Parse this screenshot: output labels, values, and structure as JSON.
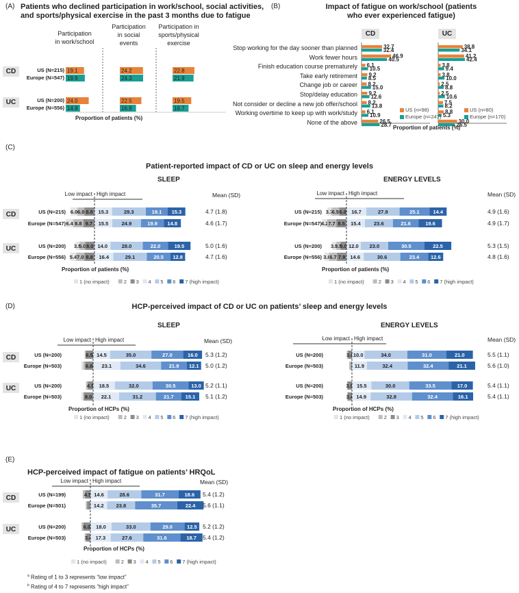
{
  "panelA": {
    "label": "(A)",
    "title_l1": "Patients who declined participation in work/school, social activities,",
    "title_l2": "and sports/physical exercise in the past 3 months due to fatigue",
    "col1_l1": "Participation",
    "col1_l2": "in work/school",
    "col2_l1": "Participation",
    "col2_l2": "in social",
    "col2_l3": "events",
    "col3_l1": "Participation in",
    "col3_l2": "sports/physical",
    "col3_l3": "exercise",
    "cd_badge": "CD",
    "uc_badge": "UC",
    "cd_us": "US (N=215)",
    "cd_eu": "Europe (N=547)",
    "uc_us": "US (N=200)",
    "uc_eu": "Europe (N=556)",
    "xlabel": "Proportion of patients (%)"
  },
  "panelB": {
    "label": "(B)",
    "title_l1": "Impact of fatigue on work/school (patients",
    "title_l2": "who ever experienced fatigue)",
    "cd_badge": "CD",
    "uc_badge": "UC",
    "legend_cd_us": "US (n=98)",
    "legend_cd_eu": "Europe (n=247)",
    "legend_uc_us": "US (n=80)",
    "legend_uc_eu": "Europe (n=170)",
    "xlabel": "Proportion of patients (%)"
  },
  "panelC": {
    "label": "(C)",
    "title": "Patient-reported impact of CD or UC on sleep and energy levels",
    "sleep": "SLEEP",
    "energy": "ENERGY LEVELS",
    "low": "Low impact",
    "high": "High impact",
    "mean_sd": "Mean (SD)",
    "xlabel": "Proportion of patients (%)"
  },
  "panelD": {
    "label": "(D)",
    "title": "HCP-perceived impact of CD or UC on patients’ sleep and energy levels",
    "sleep": "SLEEP",
    "energy": "ENERGY LEVELS",
    "low": "Low impact",
    "high": "High impact",
    "mean_sd": "Mean (SD)",
    "xlabel": "Proportion of HCPs (%)"
  },
  "panelE": {
    "label": "(E)",
    "title": "HCP-perceived impact of fatigue on patients’ HRQoL",
    "low": "Low impact",
    "high": "High impact",
    "mean_sd": "Mean (SD)",
    "xlabel": "Proportion of HCPs (%)"
  },
  "legend7": [
    "1 (no impact)",
    "2",
    "3",
    "4",
    "5",
    "6",
    "7 (high impact)"
  ],
  "footnotes": {
    "a": "Rating of 1 to 3 represents “low impact”",
    "b": "Rating of 4 to 7 represents “high impact”"
  },
  "colors": {
    "us": "#e8823a",
    "europe": "#1a9e94",
    "likert": [
      "#e4e4e4",
      "#bdbdbd",
      "#8c8c8c",
      "#e0e9f5",
      "#b4cbe8",
      "#5f8fcc",
      "#2b63a8"
    ]
  },
  "chart_data": [
    {
      "type": "bar",
      "title": "Patients who declined participation in work/school, social activities, and sports/physical exercise in the past 3 months due to fatigue",
      "categories": [
        "Participation in work/school",
        "Participation in social events",
        "Participation in sports/physical exercise"
      ],
      "groups": [
        {
          "name": "CD",
          "series": [
            {
              "name": "US (N=215)",
              "values": [
                19.1,
                24.2,
                22.8
              ]
            },
            {
              "name": "Europe (N=547)",
              "values": [
                19.9,
                24.3,
                21.9
              ]
            }
          ]
        },
        {
          "name": "UC",
          "series": [
            {
              "name": "US (N=200)",
              "values": [
                24.0,
                22.5,
                19.5
              ]
            },
            {
              "name": "Europe (N=556)",
              "values": [
                14.9,
                16.9,
                16.7
              ]
            }
          ]
        }
      ],
      "xlabel": "Proportion of patients (%)"
    },
    {
      "type": "bar",
      "title": "Impact of fatigue on work/school (patients who ever experienced fatigue)",
      "categories": [
        "Stop working for the day sooner than planned",
        "Work fewer hours",
        "Finish education course prematurely",
        "Take early retirement",
        "Change job or career",
        "Stop/delay education",
        "Not consider or decline a new job offer/school",
        "Working overtime to keep up with work/study",
        "None of the above"
      ],
      "groups": [
        {
          "name": "CD",
          "series": [
            {
              "name": "US (n=98)",
              "values": [
                32.7,
                46.9,
                6.1,
                9.2,
                8.2,
                9.2,
                8.2,
                6.1,
                26.5
              ]
            },
            {
              "name": "Europe (n=247)",
              "values": [
                32.4,
                40.5,
                10.5,
                8.5,
                15.0,
                12.6,
                13.8,
                10.9,
                28.7
              ]
            }
          ]
        },
        {
          "name": "UC",
          "series": [
            {
              "name": "US (n=80)",
              "values": [
                38.8,
                41.2,
                3.8,
                3.8,
                2.5,
                2.5,
                7.5,
                8.8,
                30.0
              ]
            },
            {
              "name": "Europe (n=170)",
              "values": [
                34.1,
                42.4,
                9.4,
                10.0,
                8.8,
                10.6,
                8.2,
                5.3,
                26.5
              ]
            }
          ]
        }
      ],
      "xlabel": "Proportion of patients (%)"
    },
    {
      "type": "bar",
      "stacked": true,
      "title": "Patient-reported impact of CD or UC on sleep and energy levels",
      "legend": [
        "1 (no impact)",
        "2",
        "3",
        "4",
        "5",
        "6",
        "7 (high impact)"
      ],
      "panels": [
        {
          "name": "SLEEP",
          "rows": [
            {
              "group": "CD",
              "label": "US (N=215)",
              "values": [
                6.0,
                6.0,
                8.8,
                15.3,
                29.3,
                19.1,
                15.3
              ],
              "mean_sd": "4.7 (1.8)"
            },
            {
              "group": "CD",
              "label": "Europe (N=547)",
              "values": [
                6.4,
                8.8,
                9.7,
                15.5,
                24.9,
                19.9,
                14.8
              ],
              "mean_sd": "4.6 (1.7)"
            },
            {
              "group": "UC",
              "label": "US (N=200)",
              "values": [
                3.5,
                5.0,
                8.0,
                14.0,
                28.0,
                22.0,
                19.5
              ],
              "mean_sd": "5.0 (1.6)"
            },
            {
              "group": "UC",
              "label": "Europe (N=556)",
              "values": [
                5.4,
                7.0,
                8.8,
                16.4,
                29.1,
                20.5,
                12.8
              ],
              "mean_sd": "4.7 (1.6)"
            }
          ]
        },
        {
          "name": "ENERGY LEVELS",
          "rows": [
            {
              "group": "CD",
              "label": "US (N=215)",
              "values": [
                3.7,
                6.5,
                6.0,
                16.7,
                27.9,
                25.1,
                14.4
              ],
              "mean_sd": "4.9 (1.6)"
            },
            {
              "group": "CD",
              "label": "Europe (N=547)",
              "values": [
                4.2,
                7.7,
                8.5,
                15.4,
                23.6,
                21.6,
                19.6
              ],
              "mean_sd": "4.9 (1.7)"
            },
            {
              "group": "UC",
              "label": "US (N=200)",
              "values": [
                3.5,
                3.5,
                5.0,
                12.0,
                23.0,
                30.5,
                22.5
              ],
              "mean_sd": "5.3 (1.5)"
            },
            {
              "group": "UC",
              "label": "Europe (N=556)",
              "values": [
                3.8,
                6.7,
                7.9,
                14.6,
                30.6,
                23.4,
                12.6
              ],
              "mean_sd": "4.8 (1.6)"
            }
          ]
        }
      ],
      "xlabel": "Proportion of patients (%)"
    },
    {
      "type": "bar",
      "stacked": true,
      "title": "HCP-perceived impact of CD or UC on patients’ sleep and energy levels",
      "legend": [
        "1 (no impact)",
        "2",
        "3",
        "4",
        "5",
        "6",
        "7 (high impact)"
      ],
      "panels": [
        {
          "name": "SLEEP",
          "rows": [
            {
              "group": "CD",
              "label": "US (N=200)",
              "values": [
                1.0,
                0.0,
                6.5,
                14.5,
                35.0,
                27.0,
                16.0
              ],
              "mean_sd": "5.3 (1.2)"
            },
            {
              "group": "CD",
              "label": "Europe (N=503)",
              "values": [
                1.6,
                1.5,
                6.8,
                23.1,
                34.6,
                21.9,
                12.1
              ],
              "mean_sd": "5.0 (1.2)"
            },
            {
              "group": "UC",
              "label": "US (N=200)",
              "values": [
                0.0,
                1.5,
                4.5,
                18.5,
                32.0,
                30.5,
                13.0
              ],
              "mean_sd": "5.2 (1.1)"
            },
            {
              "group": "UC",
              "label": "Europe (N=503)",
              "values": [
                1.8,
                0.2,
                8.0,
                22.1,
                31.2,
                21.7,
                15.1
              ],
              "mean_sd": "5.1 (1.2)"
            }
          ]
        },
        {
          "name": "ENERGY LEVELS",
          "rows": [
            {
              "group": "CD",
              "label": "US (N=200)",
              "values": [
                0.0,
                1.0,
                3.0,
                10.0,
                34.0,
                31.0,
                21.0
              ],
              "mean_sd": "5.5 (1.1)"
            },
            {
              "group": "CD",
              "label": "Europe (N=503)",
              "values": [
                0.0,
                1.4,
                0.8,
                11.9,
                32.4,
                32.4,
                21.1
              ],
              "mean_sd": "5.6 (1.0)"
            },
            {
              "group": "UC",
              "label": "US (N=200)",
              "values": [
                0.0,
                0.5,
                3.5,
                15.5,
                30.0,
                33.5,
                17.0
              ],
              "mean_sd": "5.4 (1.1)"
            },
            {
              "group": "UC",
              "label": "Europe (N=503)",
              "values": [
                0.0,
                0.4,
                3.4,
                14.9,
                32.8,
                32.4,
                16.1
              ],
              "mean_sd": "5.4 (1.1)"
            }
          ]
        }
      ],
      "xlabel": "Proportion of HCPs (%)"
    },
    {
      "type": "bar",
      "stacked": true,
      "title": "HCP-perceived impact of fatigue on patients’ HRQoL",
      "legend": [
        "1 (no impact)",
        "2",
        "3",
        "4",
        "5",
        "6",
        "7 (high impact)"
      ],
      "rows": [
        {
          "group": "CD",
          "label": "US (N=199)",
          "values": [
            0.0,
            2.0,
            4.5,
            14.6,
            28.6,
            31.7,
            18.6
          ],
          "mean_sd": "5.4 (1.2)"
        },
        {
          "group": "CD",
          "label": "Europe (N=501)",
          "values": [
            0.2,
            1.0,
            2.8,
            14.2,
            23.8,
            35.7,
            22.4
          ],
          "mean_sd": "5.6 (1.1)"
        },
        {
          "group": "UC",
          "label": "US (N=200)",
          "values": [
            0.0,
            1.5,
            6.0,
            18.0,
            33.0,
            29.0,
            12.5
          ],
          "mean_sd": "5.2 (1.2)"
        },
        {
          "group": "UC",
          "label": "Europe (N=503)",
          "values": [
            0.0,
            1.4,
            3.4,
            17.3,
            27.6,
            31.6,
            18.7
          ],
          "mean_sd": "5.4 (1.2)"
        }
      ],
      "xlabel": "Proportion of HCPs (%)"
    }
  ]
}
